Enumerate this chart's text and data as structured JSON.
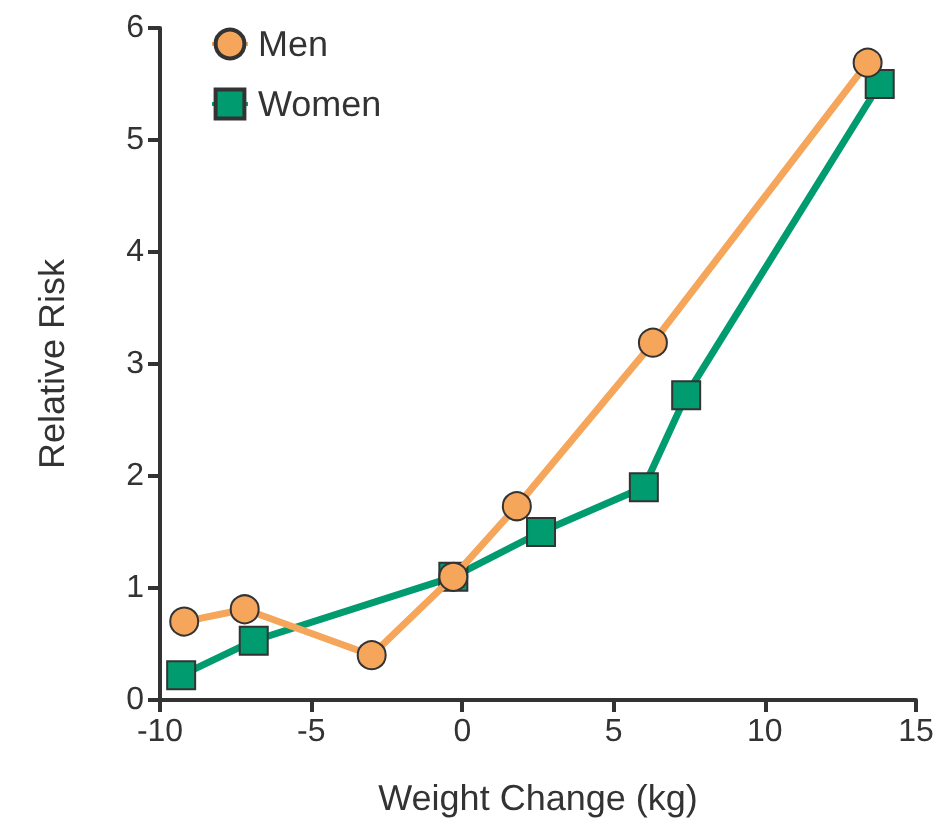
{
  "chart_data": {
    "type": "line",
    "xlabel": "Weight Change (kg)",
    "ylabel": "Relative Risk",
    "xlim": [
      -10,
      15
    ],
    "xticks": [
      -10,
      -5,
      0,
      5,
      10,
      15
    ],
    "ylim": [
      0,
      6
    ],
    "yticks": [
      0,
      1,
      2,
      3,
      4,
      5,
      6
    ],
    "grid": false,
    "legend": "top left",
    "line_style": "solid",
    "series": [
      {
        "name": "Men",
        "color": "#f5a65b",
        "marker": "circle",
        "x": [
          -9.2,
          -7.2,
          -3.0,
          -0.3,
          1.8,
          6.3,
          13.4
        ],
        "values": [
          0.7,
          0.81,
          0.4,
          1.1,
          1.73,
          3.19,
          5.69
        ]
      },
      {
        "name": "Women",
        "color": "#009b6e",
        "marker": "square",
        "x": [
          -9.3,
          -6.9,
          -0.3,
          2.6,
          6.0,
          7.4,
          13.8
        ],
        "values": [
          0.22,
          0.53,
          1.1,
          1.5,
          1.9,
          2.72,
          5.5
        ]
      }
    ]
  }
}
